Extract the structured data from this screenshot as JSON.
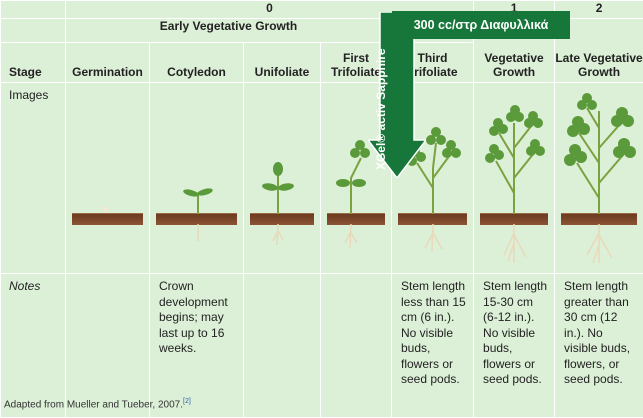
{
  "table": {
    "phase_numbers": {
      "early": "0",
      "vegetative": "1",
      "late": "2"
    },
    "early_group": "Early Vegetative Growth",
    "stage_label": "Stage",
    "stages": [
      "Germination",
      "Cotyledon",
      "Unifoliate",
      "First Trifoliate",
      "Third Trifoliate",
      "Vegetative Growth",
      "Late Vegetative Growth"
    ],
    "row_images_label": "Images",
    "row_notes_label": "Notes",
    "notes": [
      "",
      "Crown development begins; may last up to 16 weeks.",
      "",
      "",
      "Stem length less than 15 cm (6 in.). No visible buds, flowers or seed pods.",
      "Stem length 15-30 cm (6-12 in.). No visible buds, flowers or seed pods.",
      "Stem length greater than 30 cm (12 in.). No visible buds, flowers, or seed pods."
    ]
  },
  "caption": {
    "text": "Adapted from Mueller and Tueber, 2007.",
    "ref": "[2]"
  },
  "overlay": {
    "badge": "300 cc/στρ Διαφυλλικά",
    "product": "XGel® activ Sapphire",
    "colors": {
      "green": "#17763a",
      "cell": "#dcefd7"
    }
  }
}
